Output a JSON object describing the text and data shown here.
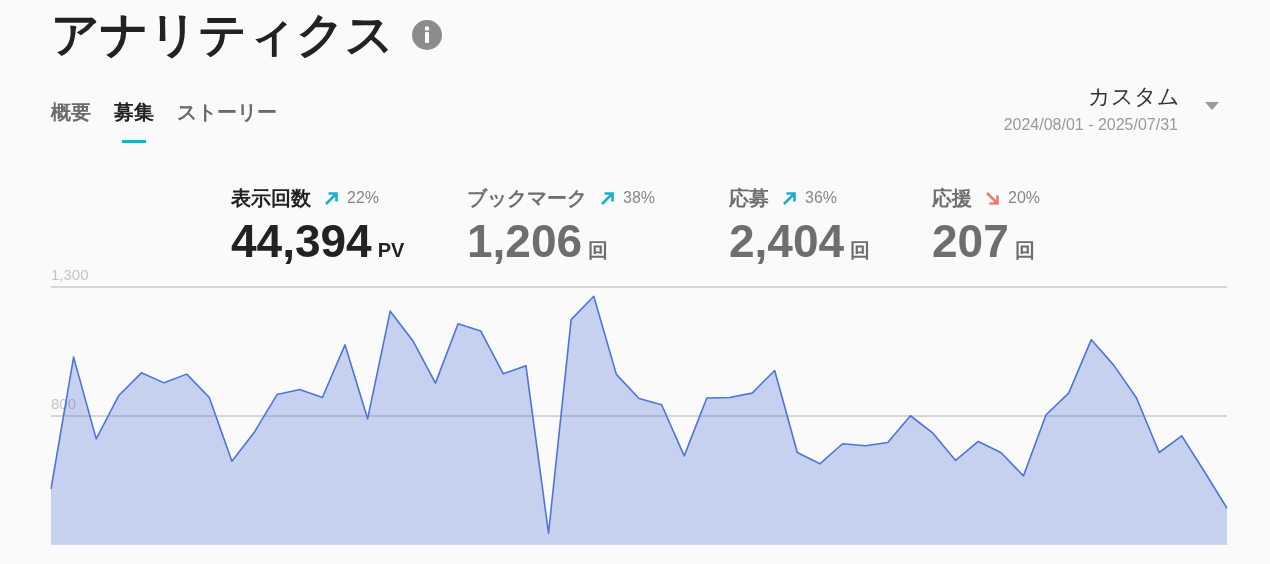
{
  "chart_data": {
    "type": "area",
    "title": "アナリティクス",
    "annotations": [
      "概要",
      "募集",
      "ストーリー",
      "カスタム",
      "2024/08/01 - 2025/07/31",
      "表示回数",
      "22%",
      "44,394",
      "PV",
      "ブックマーク",
      "38%",
      "1,206",
      "回",
      "応募",
      "36%",
      "2,404",
      "回",
      "応援",
      "20%",
      "207",
      "回"
    ],
    "categories": [
      null,
      null,
      null,
      null,
      null,
      null,
      null,
      null,
      null,
      null,
      null,
      null,
      null,
      null,
      null,
      null,
      null,
      null,
      null,
      null,
      null,
      null,
      null,
      null,
      null,
      null,
      null,
      null,
      null,
      null,
      null,
      null,
      null,
      null,
      null,
      null,
      null,
      null,
      null,
      null,
      null,
      null,
      null,
      null,
      null,
      null,
      null,
      null,
      null,
      null,
      null,
      null,
      null
    ],
    "series": [
      {
        "color": "#4f73db",
        "values": [
          514,
          1027,
          709,
          878,
          966,
          927,
          961,
          870,
          622,
          736,
          882,
          901,
          870,
          1075,
          787,
          1206,
          1091,
          926,
          1157,
          1129,
          962,
          994,
          342,
          1173,
          1264,
          960,
          866,
          842,
          643,
          868,
          870,
          887,
          975,
          656,
          612,
          690,
          682,
          695,
          799,
          731,
          625,
          699,
          656,
          565,
          803,
          887,
          1095,
          995,
          868,
          656,
          721,
          582,
          439
        ]
      }
    ],
    "ylim": [
      300,
      1300
    ],
    "yticks": [
      800,
      {
        "value": 1300,
        "label": "1,300"
      }
    ],
    "grid": "y",
    "tick_labels": "y"
  }
}
